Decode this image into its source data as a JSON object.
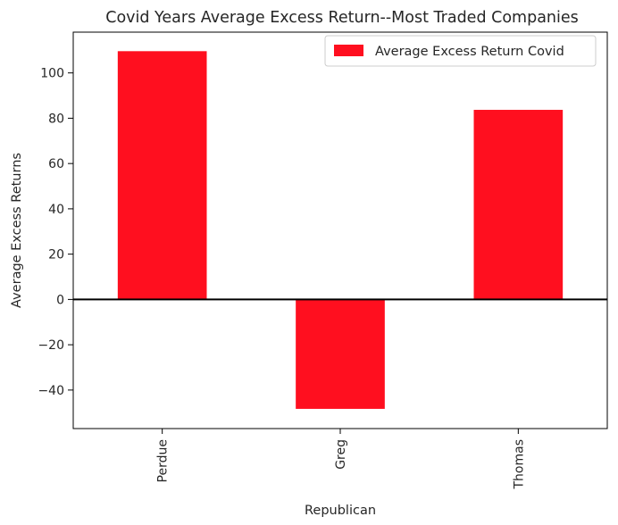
{
  "chart_data": {
    "type": "bar",
    "title": "Covid Years Average Excess Return--Most Traded Companies",
    "xlabel": "Republican",
    "ylabel": "Average Excess Returns",
    "categories": [
      "Perdue",
      "Greg",
      "Thomas"
    ],
    "series": [
      {
        "name": "Average Excess Return Covid",
        "values": [
          109.6,
          -48.3,
          83.7
        ],
        "color": "#ff0f1f"
      }
    ],
    "ylim": [
      -57,
      118
    ],
    "yticks": [
      -40,
      -20,
      0,
      20,
      40,
      60,
      80,
      100
    ],
    "ytick_labels": [
      "−40",
      "−20",
      "0",
      "20",
      "40",
      "60",
      "80",
      "100"
    ],
    "zero_line": true,
    "grid": false,
    "legend_position": "top-right"
  }
}
